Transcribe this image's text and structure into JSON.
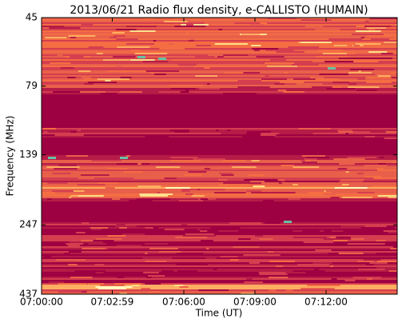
{
  "chart_data": {
    "type": "spectrogram",
    "title": "2013/06/21  Radio flux density, e-CALLISTO (HUMAIN)",
    "x_label": "Time (UT)",
    "y_label": "Frequency (MHz)",
    "xlim": [
      0,
      900
    ],
    "xticks": [
      {
        "value": 0,
        "label": "07:00:00"
      },
      {
        "value": 179,
        "label": "07:02:59"
      },
      {
        "value": 360,
        "label": "07:06:00"
      },
      {
        "value": 540,
        "label": "07:09:00"
      },
      {
        "value": 720,
        "label": "07:12:00"
      }
    ],
    "ylim": [
      45,
      437
    ],
    "yticks": [
      45,
      79,
      139,
      247,
      437
    ],
    "y_scale": "log",
    "y_inverted": true
  }
}
